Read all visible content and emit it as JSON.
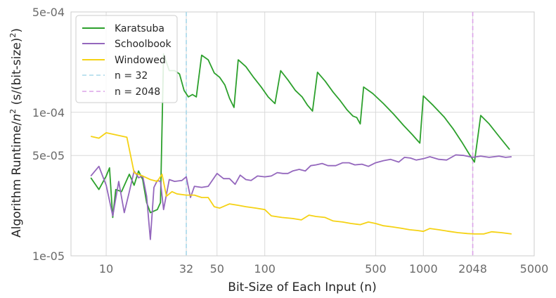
{
  "chart_data": {
    "type": "line",
    "title": "",
    "xlabel": "Bit-Size of Each Input (n)",
    "ylabel": "Algorithm Runtime/n² (s/(bit-size)²)",
    "ylabel_parts": {
      "before": "Algorithm Runtime/",
      "var": "n",
      "exp": "2",
      "mid": " (s/(bit-size)",
      "exp2": "2",
      "after": ")"
    },
    "xscale": "log",
    "yscale": "log",
    "xlim": [
      6,
      5000
    ],
    "ylim": [
      1e-05,
      0.0005
    ],
    "x_ticks": [
      {
        "value": 10,
        "label": "10"
      },
      {
        "value": 32,
        "label": "32"
      },
      {
        "value": 50,
        "label": "50"
      },
      {
        "value": 100,
        "label": "100"
      },
      {
        "value": 500,
        "label": "500"
      },
      {
        "value": 1000,
        "label": "1000"
      },
      {
        "value": 2048,
        "label": "2048"
      },
      {
        "value": 5000,
        "label": "5000"
      }
    ],
    "y_ticks": [
      {
        "value": 1e-05,
        "label": "1e-05"
      },
      {
        "value": 5e-05,
        "label": "5e-05"
      },
      {
        "value": 0.0001,
        "label": "1e-04"
      },
      {
        "value": 0.0005,
        "label": "5e-04"
      }
    ],
    "grid": true,
    "legend_position": "top-left",
    "series": [
      {
        "name": "Karatsuba",
        "color": "#2ca02c",
        "style": "solid",
        "points": [
          [
            8,
            3.5e-05
          ],
          [
            9,
            2.9e-05
          ],
          [
            10,
            3.6e-05
          ],
          [
            10.5,
            4.1e-05
          ],
          [
            11,
            1.85e-05
          ],
          [
            11.5,
            2.9e-05
          ],
          [
            12.5,
            2.8e-05
          ],
          [
            14,
            3.7e-05
          ],
          [
            15,
            3.1e-05
          ],
          [
            16,
            3.9e-05
          ],
          [
            17,
            3.4e-05
          ],
          [
            18,
            2.35e-05
          ],
          [
            19,
            2e-05
          ],
          [
            20,
            2.05e-05
          ],
          [
            21,
            2.1e-05
          ],
          [
            22,
            2.35e-05
          ],
          [
            23,
            0.000255
          ],
          [
            25,
            0.000195
          ],
          [
            27,
            0.000195
          ],
          [
            29,
            0.000185
          ],
          [
            31,
            0.000142
          ],
          [
            33,
            0.000128
          ],
          [
            35,
            0.000133
          ],
          [
            37,
            0.000128
          ],
          [
            40,
            0.00025
          ],
          [
            44,
            0.000232
          ],
          [
            48,
            0.000188
          ],
          [
            52,
            0.000175
          ],
          [
            56,
            0.000155
          ],
          [
            60,
            0.000125
          ],
          [
            64,
            0.000108
          ],
          [
            68,
            0.000232
          ],
          [
            76,
            0.000208
          ],
          [
            85,
            0.000175
          ],
          [
            95,
            0.00015
          ],
          [
            105,
            0.000128
          ],
          [
            116,
            0.000115
          ],
          [
            126,
            0.000195
          ],
          [
            140,
            0.000168
          ],
          [
            156,
            0.000142
          ],
          [
            172,
            0.000128
          ],
          [
            186,
            0.000112
          ],
          [
            200,
            0.000102
          ],
          [
            215,
            0.00019
          ],
          [
            240,
            0.000165
          ],
          [
            270,
            0.000138
          ],
          [
            300,
            0.00012
          ],
          [
            330,
            0.000104
          ],
          [
            360,
            9.4e-05
          ],
          [
            380,
            9.2e-05
          ],
          [
            400,
            8.3e-05
          ],
          [
            420,
            0.00015
          ],
          [
            480,
            0.000135
          ],
          [
            560,
            0.000115
          ],
          [
            650,
            9.7e-05
          ],
          [
            750,
            8.1e-05
          ],
          [
            850,
            7e-05
          ],
          [
            950,
            6.1e-05
          ],
          [
            1000,
            0.00013
          ],
          [
            1150,
            0.000112
          ],
          [
            1350,
            9.3e-05
          ],
          [
            1550,
            7.6e-05
          ],
          [
            1750,
            6.2e-05
          ],
          [
            1950,
            5.1e-05
          ],
          [
            2100,
            4.5e-05
          ],
          [
            2300,
            9.5e-05
          ],
          [
            2600,
            8.3e-05
          ],
          [
            3000,
            6.8e-05
          ],
          [
            3500,
            5.5e-05
          ]
        ]
      },
      {
        "name": "Schoolbook",
        "color": "#9467bd",
        "style": "solid",
        "points": [
          [
            8,
            3.6e-05
          ],
          [
            9,
            4.2e-05
          ],
          [
            10,
            3.1e-05
          ],
          [
            11,
            1.9e-05
          ],
          [
            12,
            3.3e-05
          ],
          [
            13,
            2e-05
          ],
          [
            14,
            2.8e-05
          ],
          [
            15,
            3.9e-05
          ],
          [
            16,
            3.5e-05
          ],
          [
            17,
            3.6e-05
          ],
          [
            18,
            2.6e-05
          ],
          [
            19,
            1.3e-05
          ],
          [
            20,
            3e-05
          ],
          [
            21,
            3.35e-05
          ],
          [
            22,
            3.3e-05
          ],
          [
            23,
            2.1e-05
          ],
          [
            25,
            3.4e-05
          ],
          [
            27,
            3.3e-05
          ],
          [
            30,
            3.35e-05
          ],
          [
            32,
            3.55e-05
          ],
          [
            34,
            2.55e-05
          ],
          [
            36,
            3.05e-05
          ],
          [
            40,
            3e-05
          ],
          [
            44,
            3.05e-05
          ],
          [
            50,
            3.75e-05
          ],
          [
            55,
            3.45e-05
          ],
          [
            60,
            3.45e-05
          ],
          [
            65,
            3.15e-05
          ],
          [
            70,
            3.65e-05
          ],
          [
            76,
            3.4e-05
          ],
          [
            82,
            3.35e-05
          ],
          [
            90,
            3.6e-05
          ],
          [
            100,
            3.55e-05
          ],
          [
            110,
            3.6e-05
          ],
          [
            120,
            3.8e-05
          ],
          [
            130,
            3.75e-05
          ],
          [
            140,
            3.75e-05
          ],
          [
            150,
            3.9e-05
          ],
          [
            165,
            4e-05
          ],
          [
            180,
            3.9e-05
          ],
          [
            195,
            4.25e-05
          ],
          [
            210,
            4.3e-05
          ],
          [
            230,
            4.4e-05
          ],
          [
            250,
            4.25e-05
          ],
          [
            280,
            4.25e-05
          ],
          [
            310,
            4.45e-05
          ],
          [
            340,
            4.45e-05
          ],
          [
            370,
            4.3e-05
          ],
          [
            410,
            4.35e-05
          ],
          [
            450,
            4.2e-05
          ],
          [
            500,
            4.45e-05
          ],
          [
            560,
            4.6e-05
          ],
          [
            620,
            4.7e-05
          ],
          [
            700,
            4.5e-05
          ],
          [
            760,
            4.85e-05
          ],
          [
            830,
            4.8e-05
          ],
          [
            900,
            4.65e-05
          ],
          [
            1000,
            4.75e-05
          ],
          [
            1100,
            4.9e-05
          ],
          [
            1250,
            4.7e-05
          ],
          [
            1400,
            4.65e-05
          ],
          [
            1600,
            5.05e-05
          ],
          [
            1800,
            5e-05
          ],
          [
            2048,
            4.85e-05
          ],
          [
            2300,
            4.95e-05
          ],
          [
            2600,
            4.85e-05
          ],
          [
            3000,
            4.95e-05
          ],
          [
            3300,
            4.85e-05
          ],
          [
            3600,
            4.9e-05
          ]
        ]
      },
      {
        "name": "Windowed",
        "color": "#f5d214",
        "style": "solid",
        "points": [
          [
            8,
            6.8e-05
          ],
          [
            9,
            6.6e-05
          ],
          [
            10,
            7.2e-05
          ],
          [
            12,
            6.9e-05
          ],
          [
            13.5,
            6.7e-05
          ],
          [
            15,
            3.8e-05
          ],
          [
            17,
            3.6e-05
          ],
          [
            19,
            3.4e-05
          ],
          [
            21,
            3.3e-05
          ],
          [
            22.5,
            3.7e-05
          ],
          [
            24,
            2.6e-05
          ],
          [
            26,
            2.8e-05
          ],
          [
            28,
            2.7e-05
          ],
          [
            32,
            2.65e-05
          ],
          [
            36,
            2.65e-05
          ],
          [
            40,
            2.55e-05
          ],
          [
            44,
            2.55e-05
          ],
          [
            48,
            2.2e-05
          ],
          [
            52,
            2.15e-05
          ],
          [
            60,
            2.3e-05
          ],
          [
            68,
            2.25e-05
          ],
          [
            76,
            2.2e-05
          ],
          [
            88,
            2.15e-05
          ],
          [
            100,
            2.1e-05
          ],
          [
            110,
            1.9e-05
          ],
          [
            128,
            1.85e-05
          ],
          [
            150,
            1.82e-05
          ],
          [
            170,
            1.78e-05
          ],
          [
            190,
            1.92e-05
          ],
          [
            210,
            1.88e-05
          ],
          [
            240,
            1.85e-05
          ],
          [
            270,
            1.75e-05
          ],
          [
            310,
            1.72e-05
          ],
          [
            350,
            1.68e-05
          ],
          [
            400,
            1.65e-05
          ],
          [
            450,
            1.72e-05
          ],
          [
            500,
            1.68e-05
          ],
          [
            560,
            1.62e-05
          ],
          [
            640,
            1.59e-05
          ],
          [
            720,
            1.56e-05
          ],
          [
            820,
            1.52e-05
          ],
          [
            920,
            1.5e-05
          ],
          [
            1000,
            1.48e-05
          ],
          [
            1100,
            1.55e-05
          ],
          [
            1250,
            1.52e-05
          ],
          [
            1450,
            1.48e-05
          ],
          [
            1650,
            1.45e-05
          ],
          [
            1900,
            1.43e-05
          ],
          [
            2100,
            1.42e-05
          ],
          [
            2400,
            1.42e-05
          ],
          [
            2700,
            1.47e-05
          ],
          [
            3100,
            1.45e-05
          ],
          [
            3600,
            1.42e-05
          ]
        ]
      }
    ],
    "vlines": [
      {
        "name": "n = 32",
        "x": 32,
        "color": "#a8d8ea",
        "style": "dashed"
      },
      {
        "name": "n = 2048",
        "x": 2048,
        "color": "#dca3e8",
        "style": "dashed"
      }
    ]
  }
}
